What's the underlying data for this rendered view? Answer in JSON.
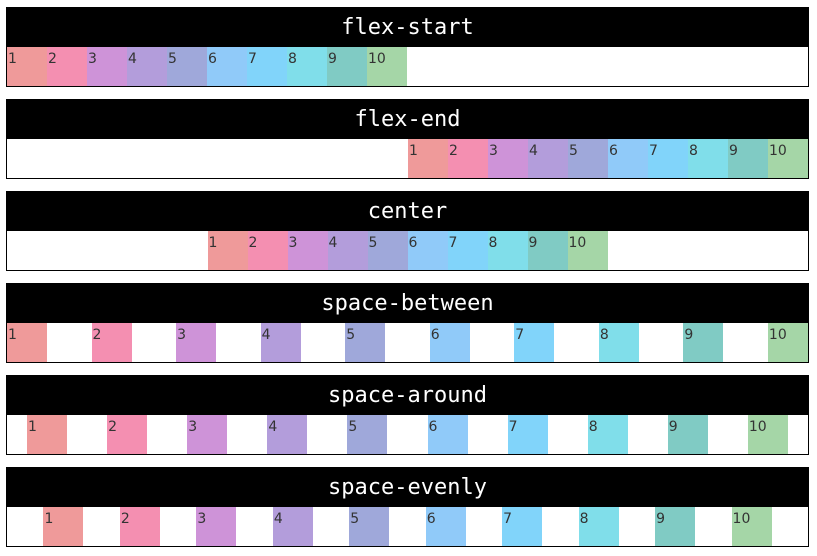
{
  "colors": [
    "#ef9a9a",
    "#f48fb1",
    "#ce93d8",
    "#b39ddb",
    "#9fa8da",
    "#90caf9",
    "#81d4fa",
    "#80deea",
    "#80cbc4",
    "#a5d6a7"
  ],
  "demos": [
    {
      "title": "flex-start",
      "justify": "flex-start",
      "items": [
        "1",
        "2",
        "3",
        "4",
        "5",
        "6",
        "7",
        "8",
        "9",
        "10"
      ]
    },
    {
      "title": "flex-end",
      "justify": "flex-end",
      "items": [
        "1",
        "2",
        "3",
        "4",
        "5",
        "6",
        "7",
        "8",
        "9",
        "10"
      ]
    },
    {
      "title": "center",
      "justify": "center",
      "items": [
        "1",
        "2",
        "3",
        "4",
        "5",
        "6",
        "7",
        "8",
        "9",
        "10"
      ]
    },
    {
      "title": "space-between",
      "justify": "space-between",
      "items": [
        "1",
        "2",
        "3",
        "4",
        "5",
        "6",
        "7",
        "8",
        "9",
        "10"
      ]
    },
    {
      "title": "space-around",
      "justify": "space-around",
      "items": [
        "1",
        "2",
        "3",
        "4",
        "5",
        "6",
        "7",
        "8",
        "9",
        "10"
      ]
    },
    {
      "title": "space-evenly",
      "justify": "space-evenly",
      "items": [
        "1",
        "2",
        "3",
        "4",
        "5",
        "6",
        "7",
        "8",
        "9",
        "10"
      ]
    }
  ]
}
